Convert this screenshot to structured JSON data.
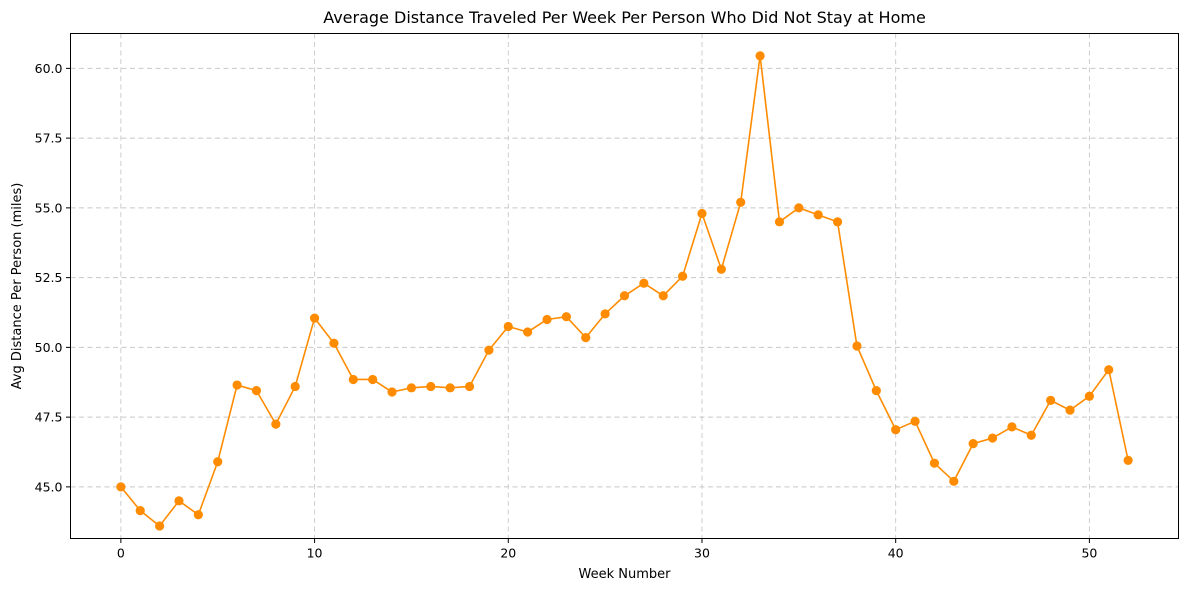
{
  "chart_data": {
    "type": "line",
    "title": "Average Distance Traveled Per Week Per Person Who Did Not Stay at Home",
    "xlabel": "Week Number",
    "ylabel": "Avg Distance Per Person (miles)",
    "xlim": [
      -2.6,
      54.6
    ],
    "ylim": [
      43.15,
      61.25
    ],
    "xticks": [
      0,
      10,
      20,
      30,
      40,
      50
    ],
    "xtick_labels": [
      "0",
      "10",
      "20",
      "30",
      "40",
      "50"
    ],
    "yticks": [
      45.0,
      47.5,
      50.0,
      52.5,
      55.0,
      57.5,
      60.0
    ],
    "ytick_labels": [
      "45.0",
      "47.5",
      "50.0",
      "52.5",
      "55.0",
      "57.5",
      "60.0"
    ],
    "grid": true,
    "color": "#ff8c00",
    "marker": "circle",
    "series": [
      {
        "x": [
          0,
          1,
          2,
          3,
          4,
          5,
          6,
          7,
          8,
          9,
          10,
          11,
          12,
          13,
          14,
          15,
          16,
          17,
          18,
          19,
          20,
          21,
          22,
          23,
          24,
          25,
          26,
          27,
          28,
          29,
          30,
          31,
          32,
          33,
          34,
          35,
          36,
          37,
          38,
          39,
          40,
          41,
          42,
          43,
          44,
          45,
          46,
          47,
          48,
          49,
          50,
          51,
          52
        ],
        "y": [
          45.0,
          44.15,
          43.6,
          44.5,
          44.0,
          45.9,
          48.65,
          48.45,
          47.25,
          48.6,
          51.05,
          50.15,
          48.85,
          48.85,
          48.4,
          48.55,
          48.6,
          48.55,
          48.6,
          49.9,
          50.75,
          50.55,
          51.0,
          51.1,
          50.35,
          51.2,
          51.85,
          52.3,
          51.85,
          52.55,
          54.8,
          52.8,
          55.2,
          60.45,
          54.5,
          55.0,
          54.75,
          54.5,
          50.05,
          48.45,
          47.05,
          47.35,
          45.85,
          45.2,
          46.55,
          46.75,
          47.15,
          46.85,
          48.1,
          47.75,
          48.25,
          49.2,
          45.95
        ]
      }
    ]
  }
}
